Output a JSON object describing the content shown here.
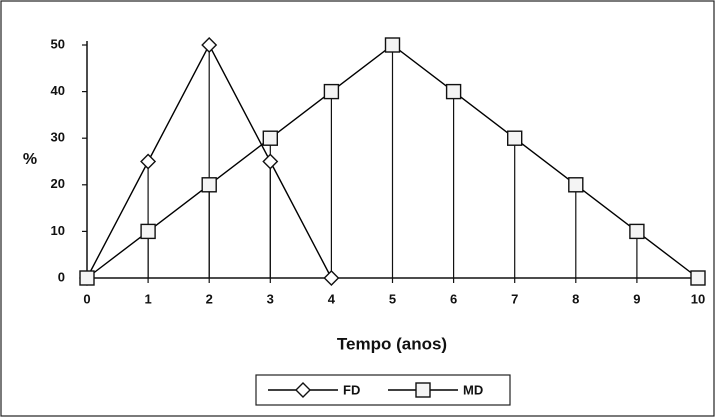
{
  "chart_data": {
    "type": "line",
    "x": [
      0,
      1,
      2,
      3,
      4,
      5,
      6,
      7,
      8,
      9,
      10
    ],
    "series": [
      {
        "name": "FD",
        "color": "#000000",
        "marker": "diamond",
        "values": [
          0,
          25,
          50,
          25,
          0,
          null,
          null,
          null,
          null,
          null,
          null
        ]
      },
      {
        "name": "MD",
        "color": "#000000",
        "marker": "square",
        "values": [
          0,
          10,
          20,
          30,
          40,
          50,
          40,
          30,
          20,
          10,
          0
        ]
      }
    ],
    "xlabel": "Tempo (anos)",
    "ylabel": "%",
    "xlim": [
      0,
      10
    ],
    "xticks": [
      0,
      1,
      2,
      3,
      4,
      5,
      6,
      7,
      8,
      9,
      10
    ],
    "ylim": [
      0,
      50
    ],
    "yticks": [
      0,
      10,
      20,
      30,
      40,
      50
    ],
    "drop_lines": true,
    "grid": false,
    "legend": "bottom"
  }
}
